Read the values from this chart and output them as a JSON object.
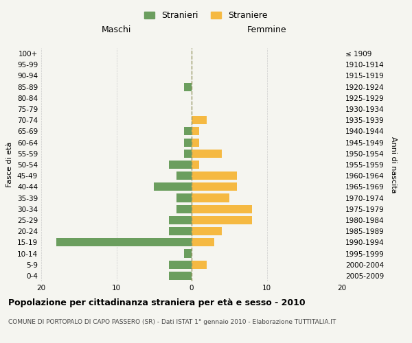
{
  "age_groups_bottom_to_top": [
    "0-4",
    "5-9",
    "10-14",
    "15-19",
    "20-24",
    "25-29",
    "30-34",
    "35-39",
    "40-44",
    "45-49",
    "50-54",
    "55-59",
    "60-64",
    "65-69",
    "70-74",
    "75-79",
    "80-84",
    "85-89",
    "90-94",
    "95-99",
    "100+"
  ],
  "birth_years_bottom_to_top": [
    "2005-2009",
    "2000-2004",
    "1995-1999",
    "1990-1994",
    "1985-1989",
    "1980-1984",
    "1975-1979",
    "1970-1974",
    "1965-1969",
    "1960-1964",
    "1955-1959",
    "1950-1954",
    "1945-1949",
    "1940-1944",
    "1935-1939",
    "1930-1934",
    "1925-1929",
    "1920-1924",
    "1915-1919",
    "1910-1914",
    "≤ 1909"
  ],
  "maschi_bottom_to_top": [
    3,
    3,
    1,
    18,
    3,
    3,
    2,
    2,
    5,
    2,
    3,
    1,
    1,
    1,
    0,
    0,
    0,
    1,
    0,
    0,
    0
  ],
  "femmine_bottom_to_top": [
    0,
    2,
    0,
    3,
    4,
    8,
    8,
    5,
    6,
    6,
    1,
    4,
    1,
    1,
    2,
    0,
    0,
    0,
    0,
    0,
    0
  ],
  "male_color": "#6b9e5e",
  "female_color": "#f5b942",
  "title": "Popolazione per cittadinanza straniera per età e sesso - 2010",
  "subtitle": "COMUNE DI PORTOPALO DI CAPO PASSERO (SR) - Dati ISTAT 1° gennaio 2010 - Elaborazione TUTTITALIA.IT",
  "legend_male": "Stranieri",
  "legend_female": "Straniere",
  "header_left": "Maschi",
  "header_right": "Femmine",
  "ylabel_left": "Fasce di età",
  "ylabel_right": "Anni di nascita",
  "xlim": 20,
  "background_color": "#f5f5f0",
  "bar_height": 0.75,
  "grid_color": "#cccccc",
  "center_line_color": "#999966",
  "title_fontsize": 9,
  "subtitle_fontsize": 6.5,
  "tick_fontsize": 7.5,
  "header_fontsize": 9
}
